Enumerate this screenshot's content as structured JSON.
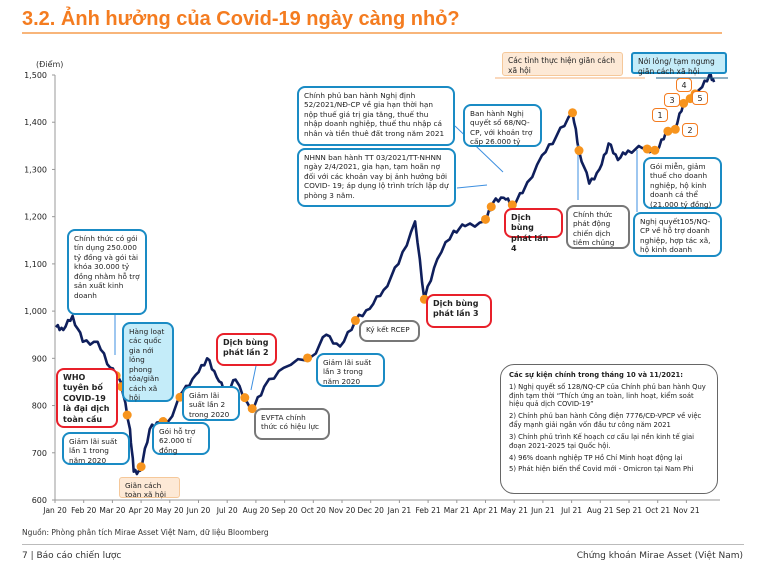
{
  "title": "3.2. Ảnh hưởng của Covid-19 ngày càng nhỏ?",
  "source": "Nguồn: Phòng phân tích Mirae Asset Việt Nam, dữ liệu Bloomberg",
  "footer": {
    "left": "7 | Báo cáo chiến lược",
    "right": "Chứng khoán Mirae Asset (Việt Nam)"
  },
  "colors": {
    "line": "#0f1f5c",
    "marker": "#f7941d",
    "accent": "#f47c20"
  },
  "chart_data": {
    "type": "line",
    "ylabel": "(Điểm)",
    "ylim": [
      600,
      1500
    ],
    "yticks": [
      600,
      700,
      800,
      900,
      "1,000",
      "1,100",
      "1,200",
      "1,300",
      "1,400",
      "1,500"
    ],
    "xticks": [
      "Jan 20",
      "Feb 20",
      "Mar 20",
      "Apr 20",
      "May 20",
      "Jun 20",
      "Jul 20",
      "Aug 20",
      "Sep 20",
      "Oct 20",
      "Nov 20",
      "Dec 20",
      "Jan 21",
      "Feb 21",
      "Mar 21",
      "Apr 21",
      "May 21",
      "Jun 21",
      "Jul 21",
      "Aug 21",
      "Sep 21",
      "Oct 21",
      "Nov 21"
    ],
    "series": [
      {
        "points": [
          [
            "2020-01-02",
            966
          ],
          [
            "2020-01-10",
            960
          ],
          [
            "2020-01-20",
            990
          ],
          [
            "2020-01-31",
            935
          ],
          [
            "2020-02-15",
            935
          ],
          [
            "2020-02-28",
            880
          ],
          [
            "2020-03-10",
            850
          ],
          [
            "2020-03-20",
            750
          ],
          [
            "2020-03-24",
            660
          ],
          [
            "2020-03-31",
            662
          ],
          [
            "2020-04-10",
            750
          ],
          [
            "2020-04-20",
            765
          ],
          [
            "2020-04-30",
            768
          ],
          [
            "2020-05-15",
            830
          ],
          [
            "2020-05-29",
            865
          ],
          [
            "2020-06-10",
            900
          ],
          [
            "2020-06-20",
            860
          ],
          [
            "2020-06-30",
            825
          ],
          [
            "2020-07-10",
            855
          ],
          [
            "2020-07-27",
            790
          ],
          [
            "2020-08-10",
            840
          ],
          [
            "2020-08-31",
            880
          ],
          [
            "2020-09-30",
            905
          ],
          [
            "2020-10-15",
            950
          ],
          [
            "2020-10-30",
            925
          ],
          [
            "2020-11-15",
            980
          ],
          [
            "2020-11-30",
            1005
          ],
          [
            "2020-12-15",
            1045
          ],
          [
            "2020-12-31",
            1100
          ],
          [
            "2021-01-18",
            1190
          ],
          [
            "2021-01-28",
            1025
          ],
          [
            "2021-02-10",
            1110
          ],
          [
            "2021-02-26",
            1170
          ],
          [
            "2021-03-10",
            1180
          ],
          [
            "2021-03-31",
            1190
          ],
          [
            "2021-04-09",
            1230
          ],
          [
            "2021-04-20",
            1240
          ],
          [
            "2021-04-29",
            1225
          ],
          [
            "2021-05-10",
            1250
          ],
          [
            "2021-05-31",
            1330
          ],
          [
            "2021-06-15",
            1370
          ],
          [
            "2021-07-02",
            1420
          ],
          [
            "2021-07-09",
            1340
          ],
          [
            "2021-07-20",
            1270
          ],
          [
            "2021-07-31",
            1300
          ],
          [
            "2021-08-10",
            1355
          ],
          [
            "2021-08-20",
            1320
          ],
          [
            "2021-08-31",
            1340
          ],
          [
            "2021-09-15",
            1345
          ],
          [
            "2021-09-30",
            1340
          ],
          [
            "2021-10-10",
            1380
          ],
          [
            "2021-10-20",
            1385
          ],
          [
            "2021-10-29",
            1440
          ],
          [
            "2021-11-05",
            1450
          ],
          [
            "2021-11-15",
            1470
          ],
          [
            "2021-11-25",
            1500
          ],
          [
            "2021-11-30",
            1485
          ]
        ]
      }
    ],
    "event_dates": [
      "2020-03-05",
      "2020-03-11",
      "2020-03-17",
      "2020-04-01",
      "2020-04-24",
      "2020-05-12",
      "2020-07-20",
      "2020-07-28",
      "2020-09-25",
      "2020-11-15",
      "2021-01-28",
      "2021-04-01",
      "2021-04-07",
      "2021-04-29",
      "2021-07-02",
      "2021-07-09",
      "2021-09-20",
      "2021-09-28",
      "2021-10-12",
      "2021-10-20",
      "2021-10-29",
      "2021-11-05",
      "2021-11-10"
    ],
    "annotations": [
      "Chính thức có gói tín dụng 250.000 tỷ đồng và gói tài khóa 30.000 tỷ đồng nhằm hỗ trợ sản xuất kinh doanh",
      "Hàng loạt các quốc gia nới lỏng phong tỏa/giãn cách xã hội",
      "WHO tuyên bố COVID-19 là đại dịch toàn cầu",
      "Giảm lãi suất lần 1 trong năm 2020",
      "Giãn cách toàn xã hội",
      "Gói hỗ trợ 62.000 tỉ đồng",
      "Giảm lãi suất lần 2 trong 2020",
      "Dịch bùng phát lần 2",
      "EVFTA chính thức có hiệu lực",
      "Giảm lãi suất lần 3 trong năm 2020",
      "Ký kết RCEP",
      "Dịch bùng phát lần 3",
      "Chính phủ ban hành Nghị định 52/2021/NĐ-CP về gia hạn thời hạn nộp thuế giá trị gia tăng, thuế thu nhập doanh nghiệp, thuế thu nhập cá nhân và tiền thuê đất trong năm 2021",
      "NHNN ban hành TT 03/2021/TT-NHNN ngày 2/4/2021, gia hạn, tạm hoãn nợ đối với các khoản vay bị ảnh hưởng bởi COVID- 19; áp dụng lộ trình trích lập dự phòng 3 năm.",
      "Ban hành Nghị quyết số 68/NQ-CP, với khoản trợ cấp 26.000 tỷ",
      "Dịch bùng phát lần 4",
      "Chính thức phát động chiến dịch tiêm chủng",
      "Gói miễn, giảm thuế cho doanh nghiệp, hộ kinh doanh cá thể (21.000 tỷ đồng)",
      "Nghị quyết105/NQ-CP về hỗ trợ doanh nghiệp, hợp tác xã, hộ kinh doanh",
      "Các tỉnh thực hiện giãn cách xã hội",
      "Nới lỏng/ tạm ngưng giãn cách xã hội"
    ],
    "hex_labels": [
      "1",
      "2",
      "3",
      "4",
      "5"
    ]
  },
  "info": {
    "heading": "Các sự kiện chính trong tháng 10 và 11/2021:",
    "items": [
      "1) Nghị quyết số 128/NQ-CP của Chính phủ ban hành Quy định tạm thời “Thích ứng an toàn, linh hoạt, kiểm soát hiệu quả dịch COVID-19”",
      "2) Chính phủ ban hành Công điện 7776/CĐ-VPCP về việc đẩy mạnh giải ngân vốn đầu tư công năm 2021",
      "3) Chính phủ trình Kế hoạch cơ cấu lại nền kinh tế giai đoạn 2021-2025 tại Quốc hội.",
      "4) 96% doanh nghiệp TP Hồ Chí Minh hoạt động lại",
      "5) Phát hiện biến thể Covid mới - Omicron tại Nam Phi"
    ]
  }
}
